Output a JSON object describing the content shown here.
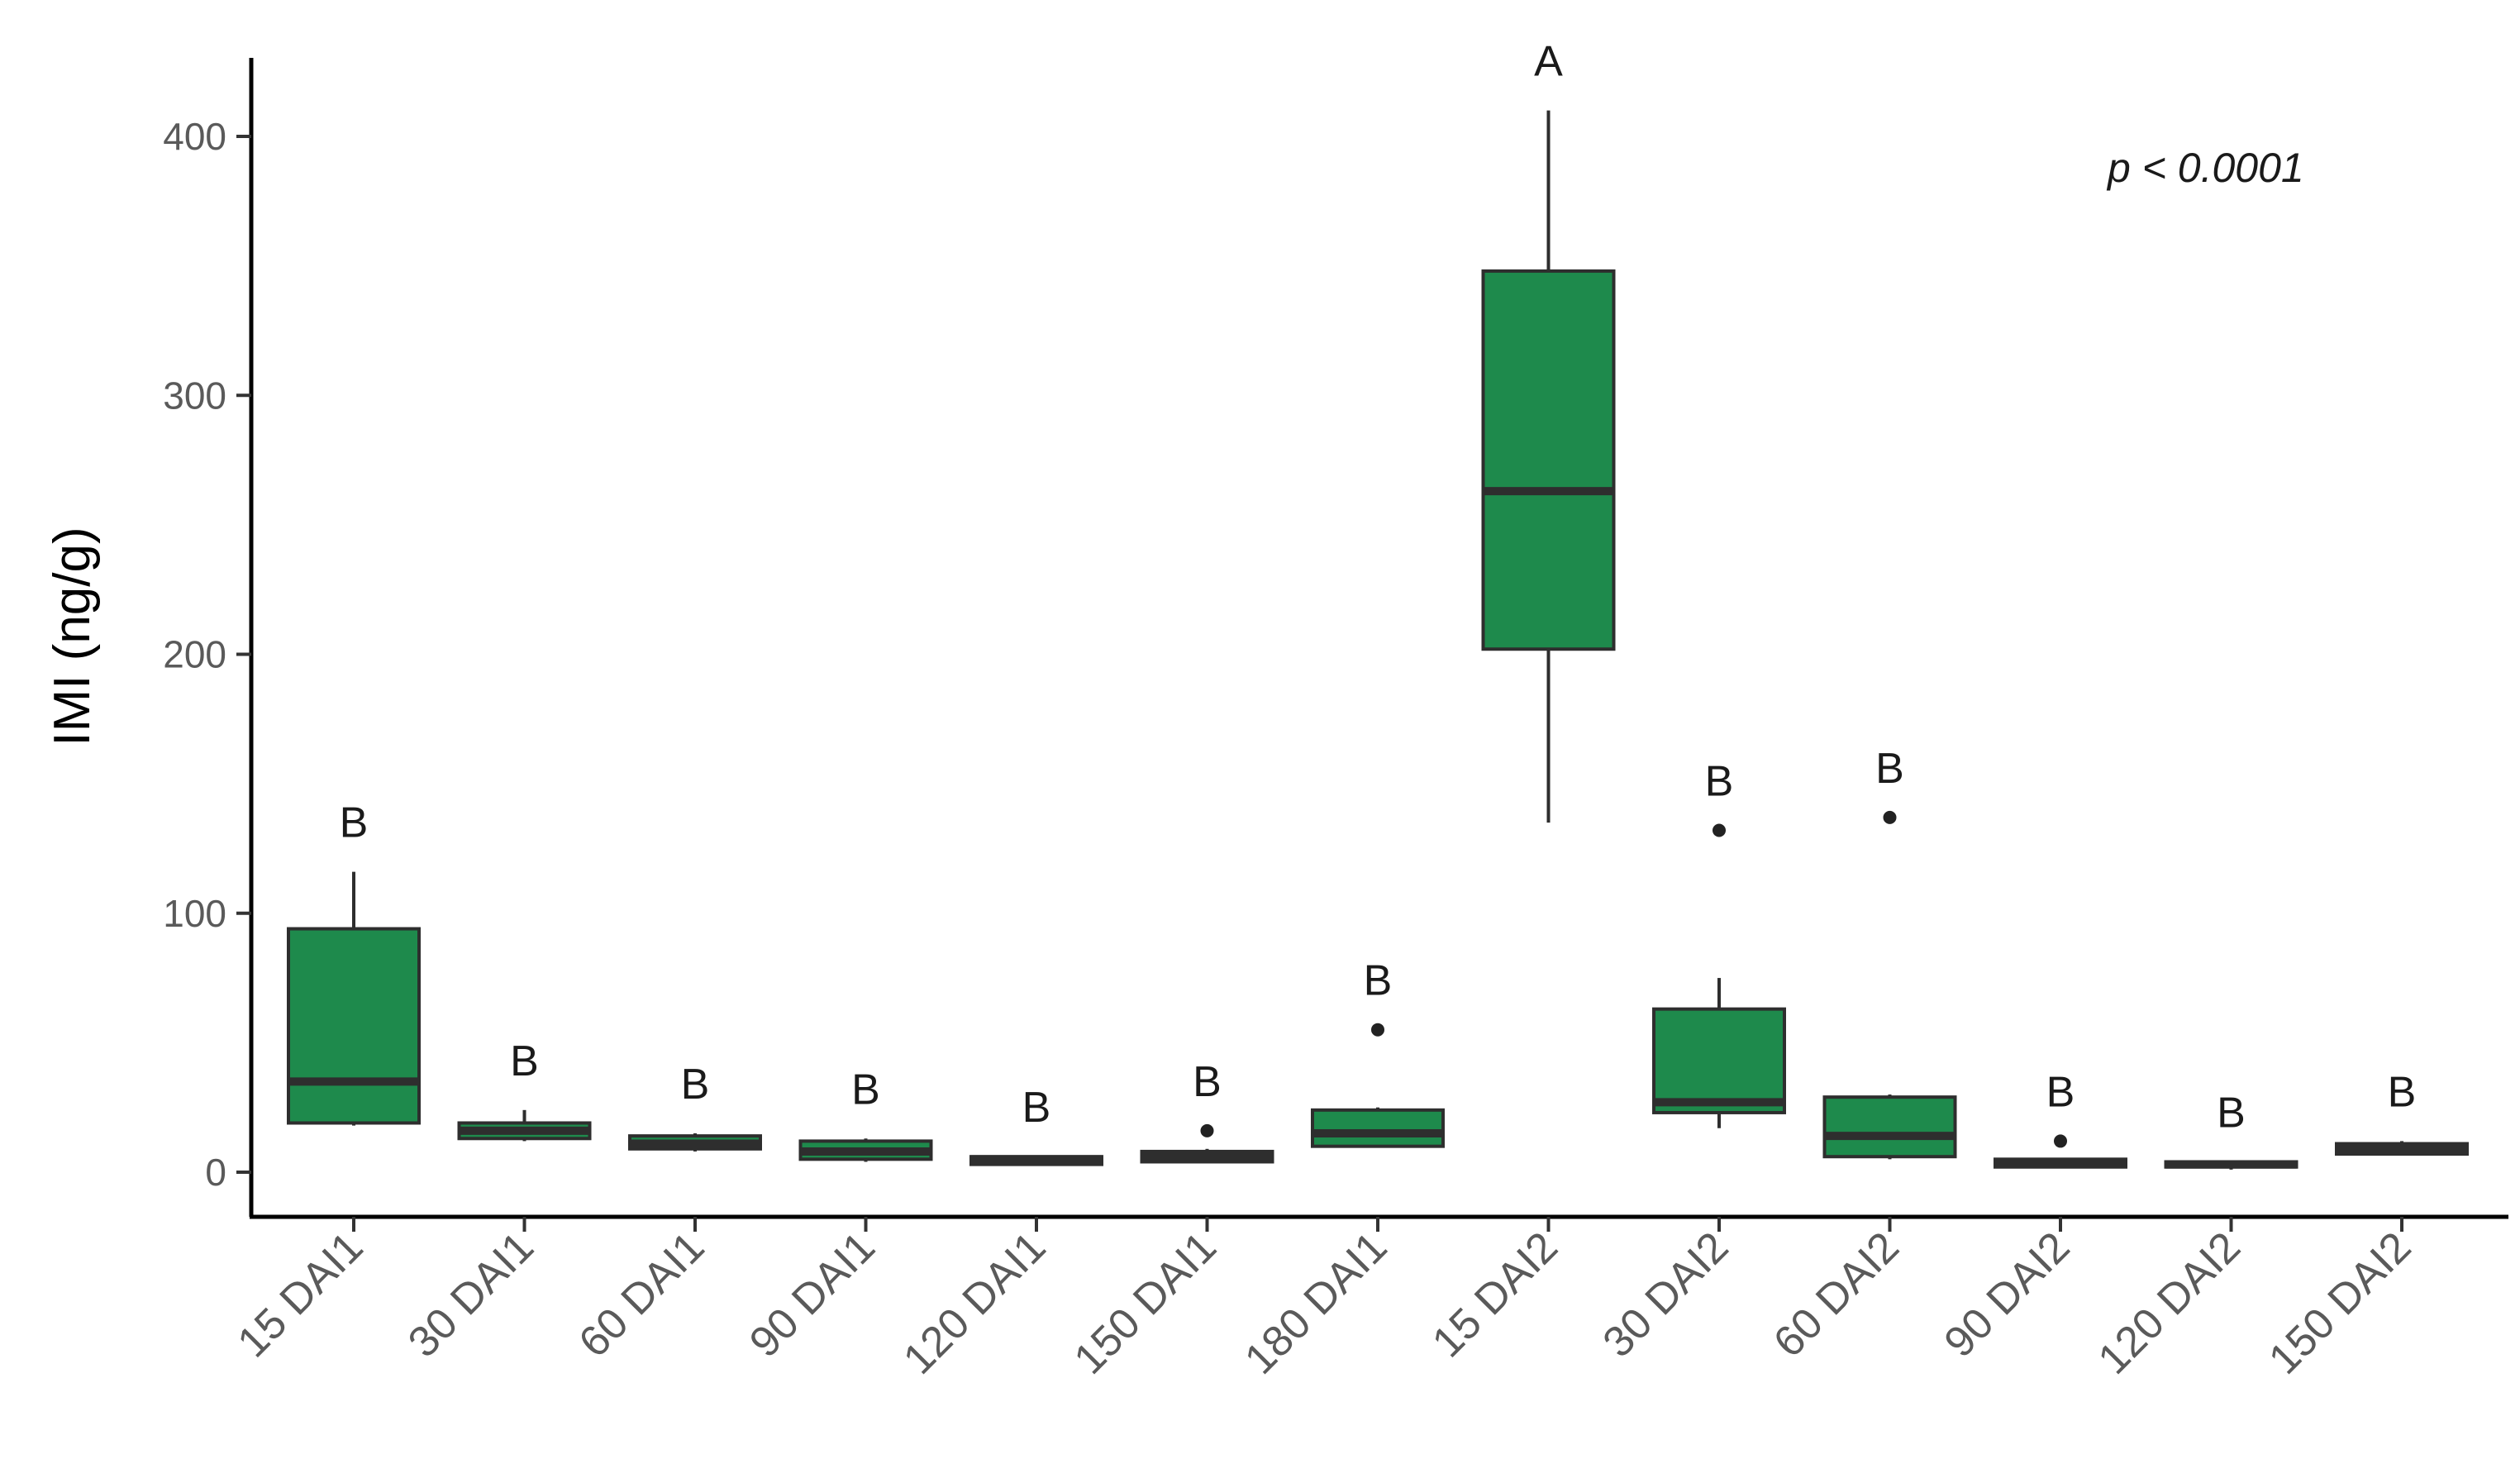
{
  "chart_data": {
    "type": "box",
    "categories": [
      "15 DAI1",
      "30 DAI1",
      "60 DAI1",
      "90 DAI1",
      "120 DAI1",
      "150 DAI1",
      "180 DAI1",
      "15 DAI2",
      "30 DAI2",
      "60 DAI2",
      "90 DAI2",
      "120 DAI2",
      "150 DAI2"
    ],
    "boxes": [
      {
        "category": "15 DAI1",
        "whisker_low": 18,
        "q1": 19,
        "median": 35,
        "q3": 94,
        "whisker_high": 116,
        "outliers": [],
        "letter": "B"
      },
      {
        "category": "30 DAI1",
        "whisker_low": 12,
        "q1": 13,
        "median": 16,
        "q3": 19,
        "whisker_high": 24,
        "outliers": [],
        "letter": "B"
      },
      {
        "category": "60 DAI1",
        "whisker_low": 8,
        "q1": 9,
        "median": 11,
        "q3": 14,
        "whisker_high": 15,
        "outliers": [],
        "letter": "B"
      },
      {
        "category": "90 DAI1",
        "whisker_low": 4,
        "q1": 5,
        "median": 8,
        "q3": 12,
        "whisker_high": 13,
        "outliers": [],
        "letter": "B"
      },
      {
        "category": "120 DAI1",
        "whisker_low": 3,
        "q1": 3,
        "median": 5,
        "q3": 6,
        "whisker_high": 6,
        "outliers": [],
        "letter": "B"
      },
      {
        "category": "150 DAI1",
        "whisker_low": 4,
        "q1": 4,
        "median": 6,
        "q3": 8,
        "whisker_high": 9,
        "outliers": [
          16
        ],
        "letter": "B"
      },
      {
        "category": "180 DAI1",
        "whisker_low": 10,
        "q1": 10,
        "median": 15,
        "q3": 24,
        "whisker_high": 25,
        "outliers": [
          55
        ],
        "letter": "B"
      },
      {
        "category": "15 DAI2",
        "whisker_low": 135,
        "q1": 202,
        "median": 263,
        "q3": 348,
        "whisker_high": 410,
        "outliers": [],
        "letter": "A"
      },
      {
        "category": "30 DAI2",
        "whisker_low": 17,
        "q1": 23,
        "median": 27,
        "q3": 63,
        "whisker_high": 75,
        "outliers": [
          132
        ],
        "letter": "B"
      },
      {
        "category": "60 DAI2",
        "whisker_low": 5,
        "q1": 6,
        "median": 14,
        "q3": 29,
        "whisker_high": 30,
        "outliers": [
          137
        ],
        "letter": "B"
      },
      {
        "category": "90 DAI2",
        "whisker_low": 2,
        "q1": 2,
        "median": 4,
        "q3": 5,
        "whisker_high": 5,
        "outliers": [
          12
        ],
        "letter": "B"
      },
      {
        "category": "120 DAI2",
        "whisker_low": 1,
        "q1": 2,
        "median": 3,
        "q3": 4,
        "whisker_high": 4,
        "outliers": [],
        "letter": "B"
      },
      {
        "category": "150 DAI2",
        "whisker_low": 7,
        "q1": 7,
        "median": 9,
        "q3": 11,
        "whisker_high": 12,
        "outliers": [],
        "letter": "B"
      }
    ],
    "ylabel": "IMI (ng/g)",
    "xlabel": "",
    "title": "",
    "ylim": [
      -20,
      430
    ],
    "yticks": [
      0,
      100,
      200,
      300,
      400
    ],
    "annotation": "p < 0.0001",
    "grid": false,
    "box_fill": "#1e8a4c",
    "box_stroke": "#2e2e2e"
  }
}
